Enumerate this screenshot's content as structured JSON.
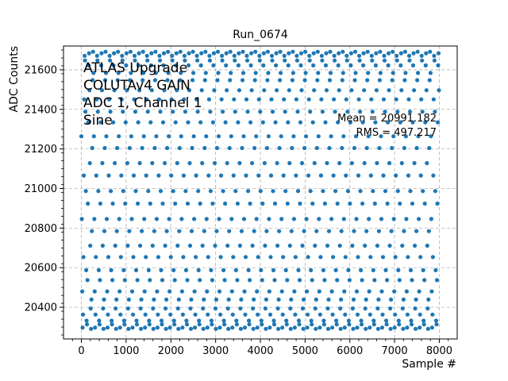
{
  "chart_data": {
    "type": "scatter",
    "title": "Run_0674",
    "xlabel": "Sample #",
    "ylabel": "ADC Counts",
    "xlim": [
      -400,
      8400
    ],
    "ylim": [
      20240,
      21720
    ],
    "x_ticks": [
      0,
      1000,
      2000,
      3000,
      4000,
      5000,
      6000,
      7000,
      8000
    ],
    "y_ticks": [
      20400,
      20600,
      20800,
      21000,
      21200,
      21400,
      21600
    ],
    "grid": true,
    "annotations": {
      "lines": [
        "ATLAS Upgrade",
        "COLUTAv4 GAIN",
        "ADC 1, Channel 1",
        "Sine"
      ],
      "mean": "Mean = 20991.182",
      "rms": "RMS = 497.217"
    },
    "series": [
      {
        "color": "#1f77b4",
        "signal": "sine",
        "x_range": [
          0,
          8000
        ],
        "center": 20991.182,
        "min": 20290,
        "max": 21692
      }
    ]
  }
}
